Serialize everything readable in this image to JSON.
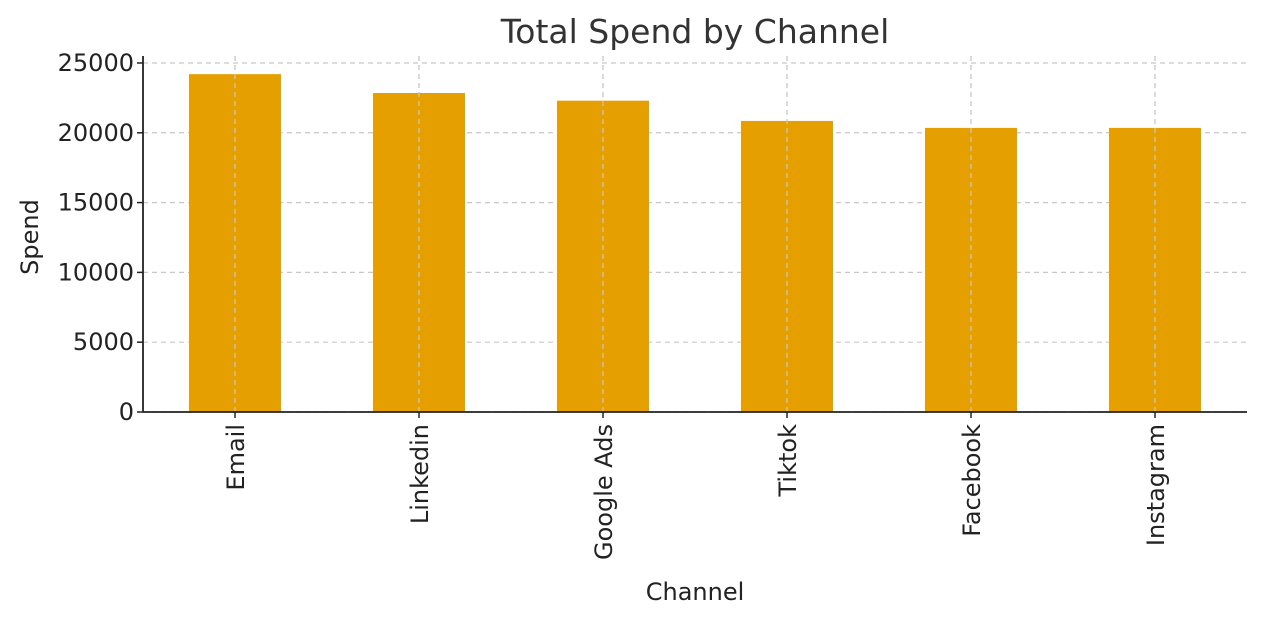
{
  "chart_data": {
    "type": "bar",
    "title": "Total Spend by Channel",
    "xlabel": "Channel",
    "ylabel": "Spend",
    "categories": [
      "Email",
      "Linkedin",
      "Google Ads",
      "Tiktok",
      "Facebook",
      "Instagram"
    ],
    "values": [
      24200,
      22850,
      22300,
      20850,
      20350,
      20350
    ],
    "ylim": [
      0,
      25500
    ],
    "yticks": [
      "0",
      "5000",
      "10000",
      "15000",
      "20000",
      "25000"
    ],
    "grid": true,
    "bar_color": "#E5A000"
  }
}
